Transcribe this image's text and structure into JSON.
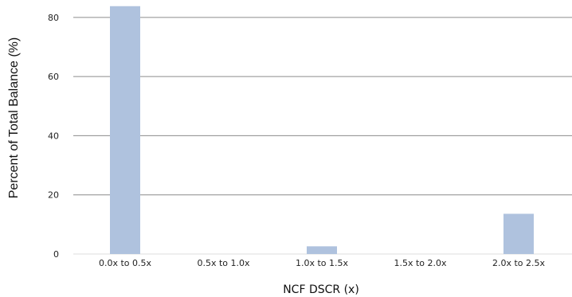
{
  "chart_data": {
    "type": "bar",
    "categories": [
      "0.0x to 0.5x",
      "0.5x to 1.0x",
      "1.0x to 1.5x",
      "1.5x to 2.0x",
      "2.0x to 2.5x"
    ],
    "values": [
      83.8,
      0,
      2.6,
      0,
      13.6
    ],
    "title": "",
    "xlabel": "NCF DSCR (x)",
    "ylabel": "Percent of Total Balance (%)",
    "ylim": [
      0,
      84
    ],
    "yticks": [
      0,
      20,
      40,
      60,
      80
    ],
    "grid": true,
    "legend": "none",
    "colors": {
      "bar": "#afc2de",
      "grid": "#8c8c8c"
    }
  }
}
